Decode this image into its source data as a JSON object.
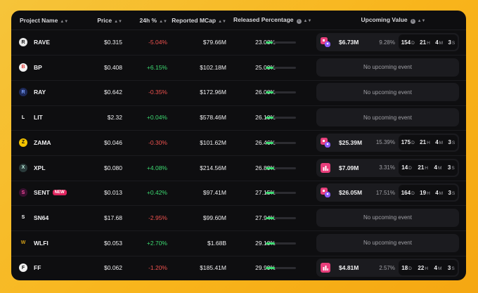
{
  "headers": {
    "name": "Project Name",
    "price": "Price",
    "change": "24h %",
    "mcap": "Reported MCap",
    "released": "Released Percentage",
    "upcoming": "Upcoming Value"
  },
  "units": {
    "d": "D",
    "h": "H",
    "m": "M",
    "s": "S"
  },
  "rows": [
    {
      "name": "RAVE",
      "badge": "",
      "logo_icon": "rave-logo",
      "logo_bg": "#e8e8e8",
      "logo_fg": "#111",
      "price": "$0.315",
      "change": "-5.04%",
      "mcap": "$79.66M",
      "released": "23.03%",
      "released_frac": 0.2303,
      "upcoming": {
        "icon": "pink-purple-token-icon",
        "value": "$6.73M",
        "pct": "9.28%",
        "d": "154",
        "h": "21",
        "m": "4",
        "s": "3"
      }
    },
    {
      "name": "BP",
      "badge": "",
      "logo_icon": "bp-logo",
      "logo_bg": "#f2f2f2",
      "logo_fg": "#e53935",
      "price": "$0.408",
      "change": "+6.15%",
      "mcap": "$102.18M",
      "released": "25.00%",
      "released_frac": 0.25,
      "empty": "No upcoming event"
    },
    {
      "name": "RAY",
      "badge": "",
      "logo_icon": "ray-logo",
      "logo_bg": "#1e2a5a",
      "logo_fg": "#7aa0ff",
      "price": "$0.642",
      "change": "-0.35%",
      "mcap": "$172.96M",
      "released": "26.00%",
      "released_frac": 0.26,
      "empty": "No upcoming event"
    },
    {
      "name": "LIT",
      "badge": "",
      "logo_icon": "lit-logo",
      "logo_bg": "#0e0e10",
      "logo_fg": "#ffffff",
      "price": "$2.32",
      "change": "+0.04%",
      "mcap": "$578.46M",
      "released": "26.10%",
      "released_frac": 0.261,
      "empty": "No upcoming event"
    },
    {
      "name": "ZAMA",
      "badge": "",
      "logo_icon": "zama-logo",
      "logo_bg": "#f5c400",
      "logo_fg": "#111",
      "price": "$0.046",
      "change": "-0.30%",
      "mcap": "$101.62M",
      "released": "26.46%",
      "released_frac": 0.2646,
      "upcoming": {
        "icon": "pink-purple-token-icon",
        "value": "$25.39M",
        "pct": "15.39%",
        "d": "175",
        "h": "21",
        "m": "4",
        "s": "3"
      }
    },
    {
      "name": "XPL",
      "badge": "",
      "logo_icon": "xpl-logo",
      "logo_bg": "#2a3a3a",
      "logo_fg": "#bff0e0",
      "price": "$0.080",
      "change": "+4.08%",
      "mcap": "$214.56M",
      "released": "26.89%",
      "released_frac": 0.2689,
      "upcoming": {
        "icon": "pink-chart-icon",
        "value": "$7.09M",
        "pct": "3.31%",
        "d": "14",
        "h": "21",
        "m": "4",
        "s": "3"
      }
    },
    {
      "name": "SENT",
      "badge": "NEW",
      "logo_icon": "sent-logo",
      "logo_bg": "#3a1030",
      "logo_fg": "#ff4fa0",
      "price": "$0.013",
      "change": "+0.42%",
      "mcap": "$97.41M",
      "released": "27.15%",
      "released_frac": 0.2715,
      "upcoming": {
        "icon": "pink-purple-token-icon",
        "value": "$26.05M",
        "pct": "17.51%",
        "d": "164",
        "h": "19",
        "m": "4",
        "s": "3"
      }
    },
    {
      "name": "SN64",
      "badge": "",
      "logo_icon": "sn64-logo",
      "logo_bg": "#0e0e10",
      "logo_fg": "#ffffff",
      "price": "$17.68",
      "change": "-2.95%",
      "mcap": "$99.60M",
      "released": "27.94%",
      "released_frac": 0.2794,
      "empty": "No upcoming event"
    },
    {
      "name": "WLFI",
      "badge": "",
      "logo_icon": "wlfi-logo",
      "logo_bg": "#0e0e10",
      "logo_fg": "#d4a017",
      "price": "$0.053",
      "change": "+2.70%",
      "mcap": "$1.68B",
      "released": "29.19%",
      "released_frac": 0.2919,
      "empty": "No upcoming event"
    },
    {
      "name": "FF",
      "badge": "",
      "logo_icon": "ff-logo",
      "logo_bg": "#f2f2f2",
      "logo_fg": "#111",
      "price": "$0.062",
      "change": "-1.20%",
      "mcap": "$185.41M",
      "released": "29.99%",
      "released_frac": 0.2999,
      "upcoming": {
        "icon": "pink-chart-icon",
        "value": "$4.81M",
        "pct": "2.57%",
        "d": "18",
        "h": "22",
        "m": "4",
        "s": "3"
      }
    }
  ]
}
